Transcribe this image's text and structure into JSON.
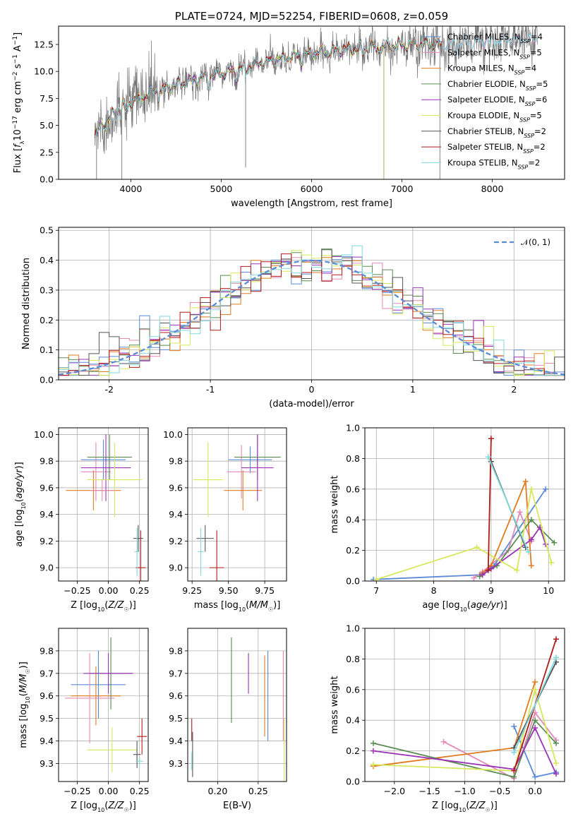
{
  "colors": {
    "chab_miles": "#5b8bd6",
    "salp_miles": "#e38ab8",
    "krou_miles": "#e07b1f",
    "chab_elodie": "#5a8d52",
    "salp_elodie": "#9b33b7",
    "krou_elodie": "#d6e85a",
    "chab_stelib": "#555555",
    "salp_stelib": "#b01a1a",
    "krou_stelib": "#7fd9dd",
    "data": "#777777",
    "gauss": "#5b8bd6"
  },
  "chart_data": [
    {
      "id": "spectrum",
      "type": "line",
      "title": "PLATE=0724, MJD=52254, FIBERID=0608, z=0.059",
      "xlabel": "wavelength [Angstrom, rest frame]",
      "ylabel": "Flux [fλ10⁻¹⁷ erg cm⁻² s⁻¹ A⁻¹]",
      "xlim": [
        3200,
        8800
      ],
      "ylim": [
        0,
        14.2
      ],
      "xticks": [
        4000,
        5000,
        6000,
        7000,
        8000
      ],
      "yticks": [
        0.0,
        2.5,
        5.0,
        7.5,
        10.0,
        12.5
      ],
      "grid": false,
      "legend_position": "top-right",
      "series": [
        {
          "name": "Chabrier MILES, N_SSP=4",
          "color_key": "chab_miles"
        },
        {
          "name": "Salpeter MILES, N_SSP=5",
          "color_key": "salp_miles"
        },
        {
          "name": "Kroupa MILES, N_SSP=4",
          "color_key": "krou_miles"
        },
        {
          "name": "Chabrier ELODIE, N_SSP=5",
          "color_key": "chab_elodie"
        },
        {
          "name": "Salpeter ELODIE, N_SSP=6",
          "color_key": "salp_elodie"
        },
        {
          "name": "Kroupa ELODIE, N_SSP=5",
          "color_key": "krou_elodie"
        },
        {
          "name": "Chabrier STELIB, N_SSP=2",
          "color_key": "chab_stelib"
        },
        {
          "name": "Salpeter STELIB, N_SSP=2",
          "color_key": "salp_stelib"
        },
        {
          "name": "Kroupa STELIB, N_SSP=2",
          "color_key": "krou_stelib"
        }
      ],
      "continuum": {
        "x": [
          3600,
          3700,
          3900,
          4100,
          4300,
          4600,
          4900,
          5200,
          5500,
          5800,
          6100,
          6400,
          6700,
          7000,
          7300,
          7600,
          8000,
          8400
        ],
        "y": [
          4.0,
          5.2,
          6.8,
          7.6,
          8.3,
          9.0,
          9.6,
          10.2,
          10.9,
          11.4,
          11.8,
          12.1,
          12.3,
          12.4,
          12.5,
          12.6,
          12.8,
          13.0
        ]
      }
    },
    {
      "id": "residuals",
      "type": "histogram",
      "xlabel": "(data-model)/error",
      "ylabel": "Normed distribution",
      "xlim": [
        -2.5,
        2.5
      ],
      "ylim": [
        0,
        0.51
      ],
      "xticks": [
        -2,
        -1,
        0,
        1,
        2
      ],
      "yticks": [
        0.0,
        0.1,
        0.2,
        0.3,
        0.4,
        0.5
      ],
      "grid": true,
      "legend_position": "top-right",
      "gauss_label": "𝒩(0, 1)",
      "bin_width": 0.1
    },
    {
      "id": "age_vs_Z",
      "type": "errorbar",
      "xlabel": "Z [log₁₀(Z/Z☉)]",
      "ylabel": "age  [log₁₀(age/yr)]",
      "xlim": [
        -0.4,
        0.32
      ],
      "ylim": [
        8.9,
        10.05
      ],
      "xticks": [
        -0.25,
        0.0,
        0.25
      ],
      "xticklabels": [
        "−0.25",
        "0.00",
        "0.25"
      ],
      "yticks": [
        9.0,
        9.2,
        9.4,
        9.6,
        9.8,
        10.0
      ],
      "yticklabels": [
        "9.0",
        "9.2",
        "9.4",
        "9.6",
        "9.8",
        "10.0"
      ],
      "grid": true,
      "points": [
        {
          "c": "chab_miles",
          "x": -0.04,
          "xe": 0.18,
          "y": 9.81,
          "ye": 0.15
        },
        {
          "c": "salp_miles",
          "x": -0.1,
          "xe": 0.12,
          "y": 9.72,
          "ye": 0.22
        },
        {
          "c": "krou_miles",
          "x": -0.12,
          "xe": 0.22,
          "y": 9.58,
          "ye": 0.15
        },
        {
          "c": "chab_elodie",
          "x": 0.01,
          "xe": 0.18,
          "y": 9.83,
          "ye": 0.17
        },
        {
          "c": "salp_elodie",
          "x": -0.02,
          "xe": 0.2,
          "y": 9.75,
          "ye": 0.25
        },
        {
          "c": "krou_elodie",
          "x": 0.05,
          "xe": 0.22,
          "y": 9.66,
          "ye": 0.28
        },
        {
          "c": "chab_stelib",
          "x": 0.24,
          "xe": 0.04,
          "y": 9.22,
          "ye": 0.1
        },
        {
          "c": "salp_stelib",
          "x": 0.26,
          "xe": 0.04,
          "y": 9.0,
          "ye": 0.28
        },
        {
          "c": "krou_stelib",
          "x": 0.23,
          "xe": 0.02,
          "y": 9.12,
          "ye": 0.18
        },
        {
          "c": "salp_miles",
          "x": -0.05,
          "xe": 0.1,
          "y": 9.58,
          "ye": 0.08
        }
      ]
    },
    {
      "id": "age_vs_mass",
      "type": "errorbar",
      "xlabel": "mass [log₁₀(M/M☉)]",
      "ylabel": "",
      "xlim": [
        9.22,
        9.9
      ],
      "ylim": [
        8.9,
        10.05
      ],
      "xticks": [
        9.25,
        9.5,
        9.75
      ],
      "xticklabels": [
        "9.25",
        "9.50",
        "9.75"
      ],
      "yticks": [
        9.0,
        9.2,
        9.4,
        9.6,
        9.8,
        10.0
      ],
      "yticklabels": [
        "9.0",
        "9.2",
        "9.4",
        "9.6",
        "9.8",
        "10.0"
      ],
      "grid": true,
      "points": [
        {
          "c": "chab_miles",
          "x": 9.65,
          "xe": 0.15,
          "y": 9.81,
          "ye": 0.1
        },
        {
          "c": "salp_miles",
          "x": 9.59,
          "xe": 0.1,
          "y": 9.72,
          "ye": 0.2
        },
        {
          "c": "krou_miles",
          "x": 9.6,
          "xe": 0.13,
          "y": 9.58,
          "ye": 0.15
        },
        {
          "c": "chab_elodie",
          "x": 9.7,
          "xe": 0.16,
          "y": 9.83,
          "ye": 0.17
        },
        {
          "c": "salp_elodie",
          "x": 9.7,
          "xe": 0.11,
          "y": 9.75,
          "ye": 0.25
        },
        {
          "c": "krou_elodie",
          "x": 9.36,
          "xe": 0.1,
          "y": 9.66,
          "ye": 0.28
        },
        {
          "c": "chab_stelib",
          "x": 9.34,
          "xe": 0.06,
          "y": 9.22,
          "ye": 0.1
        },
        {
          "c": "salp_stelib",
          "x": 9.42,
          "xe": 0.05,
          "y": 9.0,
          "ye": 0.28
        },
        {
          "c": "krou_stelib",
          "x": 9.31,
          "xe": 0.02,
          "y": 9.12,
          "ye": 0.18
        }
      ]
    },
    {
      "id": "weight_vs_age",
      "type": "line",
      "xlabel": "age  [log₁₀(age/yr)]",
      "ylabel": "mass weight",
      "xlim": [
        6.8,
        10.28
      ],
      "ylim": [
        0,
        1.0
      ],
      "xticks": [
        7,
        8,
        9,
        10
      ],
      "xticklabels": [
        "7",
        "8",
        "9",
        "10"
      ],
      "yticks": [
        0.0,
        0.2,
        0.4,
        0.6,
        0.8,
        1.0
      ],
      "yticklabels": [
        "0.0",
        "0.2",
        "0.4",
        "0.6",
        "0.8",
        "1.0"
      ],
      "grid": true,
      "series": [
        {
          "c": "chab_miles",
          "x": [
            6.95,
            8.8,
            9.05,
            9.95
          ],
          "y": [
            0.01,
            0.04,
            0.1,
            0.6
          ]
        },
        {
          "c": "salp_miles",
          "x": [
            8.7,
            8.85,
            9.3,
            9.5,
            9.7
          ],
          "y": [
            0.02,
            0.06,
            0.2,
            0.45,
            0.26
          ]
        },
        {
          "c": "krou_miles",
          "x": [
            8.85,
            9.0,
            9.6,
            9.7
          ],
          "y": [
            0.05,
            0.1,
            0.65,
            0.1
          ]
        },
        {
          "c": "chab_elodie",
          "x": [
            8.8,
            9.1,
            9.7,
            10.1
          ],
          "y": [
            0.03,
            0.1,
            0.4,
            0.25
          ]
        },
        {
          "c": "salp_elodie",
          "x": [
            8.85,
            9.0,
            9.7,
            9.85,
            9.95
          ],
          "y": [
            0.04,
            0.08,
            0.27,
            0.35,
            0.24
          ]
        },
        {
          "c": "krou_elodie",
          "x": [
            7.0,
            8.75,
            9.45,
            9.7,
            10.05
          ],
          "y": [
            0.01,
            0.22,
            0.07,
            0.6,
            0.12
          ]
        },
        {
          "c": "chab_stelib",
          "x": [
            9.0,
            9.6
          ],
          "y": [
            0.78,
            0.22
          ]
        },
        {
          "c": "salp_stelib",
          "x": [
            8.95,
            9.0
          ],
          "y": [
            0.07,
            0.93
          ]
        },
        {
          "c": "krou_stelib",
          "x": [
            8.95,
            9.65
          ],
          "y": [
            0.81,
            0.19
          ]
        }
      ]
    },
    {
      "id": "mass_vs_Z",
      "type": "errorbar",
      "xlabel": "Z [log₁₀(Z/Z☉)]",
      "ylabel": "mass [log₁₀(M/M☉)]",
      "xlim": [
        -0.4,
        0.32
      ],
      "ylim": [
        9.22,
        9.9
      ],
      "xticks": [
        -0.25,
        0.0,
        0.25
      ],
      "xticklabels": [
        "−0.25",
        "0.00",
        "0.25"
      ],
      "yticks": [
        9.3,
        9.4,
        9.5,
        9.6,
        9.7,
        9.8
      ],
      "yticklabels": [
        "9.3",
        "9.4",
        "9.5",
        "9.6",
        "9.7",
        "9.8"
      ],
      "grid": true,
      "points": [
        {
          "c": "chab_miles",
          "x": -0.08,
          "xe": 0.22,
          "y": 9.65,
          "ye": 0.15
        },
        {
          "c": "salp_miles",
          "x": -0.15,
          "xe": 0.2,
          "y": 9.59,
          "ye": 0.2
        },
        {
          "c": "krou_miles",
          "x": -0.1,
          "xe": 0.2,
          "y": 9.6,
          "ye": 0.13
        },
        {
          "c": "chab_elodie",
          "x": 0.02,
          "xe": 0.17,
          "y": 9.7,
          "ye": 0.16
        },
        {
          "c": "salp_elodie",
          "x": 0.0,
          "xe": 0.2,
          "y": 9.7,
          "ye": 0.09
        },
        {
          "c": "krou_elodie",
          "x": 0.03,
          "xe": 0.2,
          "y": 9.36,
          "ye": 0.1
        },
        {
          "c": "chab_stelib",
          "x": 0.23,
          "xe": 0.03,
          "y": 9.34,
          "ye": 0.06
        },
        {
          "c": "salp_stelib",
          "x": 0.27,
          "xe": 0.04,
          "y": 9.42,
          "ye": 0.08
        },
        {
          "c": "krou_stelib",
          "x": 0.25,
          "xe": 0.03,
          "y": 9.31,
          "ye": 0.02
        }
      ]
    },
    {
      "id": "mass_vs_ebv",
      "type": "errorbar",
      "xlabel": "E(B-V)",
      "ylabel": "",
      "xlim": [
        0.163,
        0.285
      ],
      "ylim": [
        9.22,
        9.9
      ],
      "xticks": [
        0.2,
        0.25
      ],
      "xticklabels": [
        "0.20",
        "0.25"
      ],
      "yticks": [
        9.3,
        9.4,
        9.5,
        9.6,
        9.7,
        9.8
      ],
      "yticklabels": [
        "9.3",
        "9.4",
        "9.5",
        "9.6",
        "9.7",
        "9.8"
      ],
      "grid": true,
      "points": [
        {
          "c": "chab_miles",
          "x": 0.262,
          "xe": 0,
          "y": 9.6,
          "ye": 0.2
        },
        {
          "c": "salp_miles",
          "x": 0.281,
          "xe": 0,
          "y": 9.6,
          "ye": 0.2
        },
        {
          "c": "krou_miles",
          "x": 0.258,
          "xe": 0,
          "y": 9.6,
          "ye": 0.18
        },
        {
          "c": "chab_elodie",
          "x": 0.217,
          "xe": 0,
          "y": 9.67,
          "ye": 0.19
        },
        {
          "c": "salp_elodie",
          "x": 0.238,
          "xe": 0,
          "y": 9.7,
          "ye": 0.09
        },
        {
          "c": "krou_elodie",
          "x": 0.282,
          "xe": 0,
          "y": 9.36,
          "ye": 0.14
        },
        {
          "c": "chab_stelib",
          "x": 0.169,
          "xe": 0,
          "y": 9.34,
          "ye": 0.1
        },
        {
          "c": "salp_stelib",
          "x": 0.168,
          "xe": 0,
          "y": 9.45,
          "ye": 0.05
        },
        {
          "c": "krou_stelib",
          "x": 0.168,
          "xe": 0,
          "y": 9.31,
          "ye": 0.04
        }
      ]
    },
    {
      "id": "weight_vs_Z",
      "type": "line",
      "xlabel": "Z [log₁₀(Z/Z☉)]",
      "ylabel": "mass weight",
      "xlim": [
        -2.42,
        0.42
      ],
      "ylim": [
        0,
        1.0
      ],
      "xticks": [
        -2.0,
        -1.5,
        -1.0,
        -0.5,
        0.0
      ],
      "xticklabels": [
        "−2.0",
        "−1.5",
        "−1.0",
        "−0.5",
        "0.0"
      ],
      "yticks": [
        0.0,
        0.2,
        0.4,
        0.6,
        0.8,
        1.0
      ],
      "yticklabels": [
        "0.0",
        "0.2",
        "0.4",
        "0.6",
        "0.8",
        "1.0"
      ],
      "grid": true,
      "series": [
        {
          "c": "chab_miles",
          "x": [
            -0.3,
            0.0,
            0.3
          ],
          "y": [
            0.36,
            0.03,
            0.06
          ]
        },
        {
          "c": "salp_miles",
          "x": [
            -1.3,
            -0.3,
            0.0,
            0.3
          ],
          "y": [
            0.26,
            0.02,
            0.45,
            0.27
          ]
        },
        {
          "c": "krou_miles",
          "x": [
            -2.3,
            -0.3,
            0.0
          ],
          "y": [
            0.1,
            0.22,
            0.65
          ]
        },
        {
          "c": "chab_elodie",
          "x": [
            -2.3,
            -0.3,
            0.0,
            0.3
          ],
          "y": [
            0.25,
            0.03,
            0.4,
            0.25
          ]
        },
        {
          "c": "salp_elodie",
          "x": [
            -2.3,
            -0.3,
            0.0,
            0.3
          ],
          "y": [
            0.2,
            0.08,
            0.35,
            0.05
          ]
        },
        {
          "c": "krou_elodie",
          "x": [
            -2.3,
            -0.3,
            0.0,
            0.3
          ],
          "y": [
            0.11,
            0.07,
            0.6,
            0.12
          ]
        },
        {
          "c": "chab_stelib",
          "x": [
            -0.3,
            0.3
          ],
          "y": [
            0.22,
            0.78
          ]
        },
        {
          "c": "salp_stelib",
          "x": [
            -0.3,
            0.3
          ],
          "y": [
            0.07,
            0.93
          ]
        },
        {
          "c": "krou_stelib",
          "x": [
            -0.3,
            0.3
          ],
          "y": [
            0.19,
            0.81
          ]
        }
      ]
    }
  ]
}
